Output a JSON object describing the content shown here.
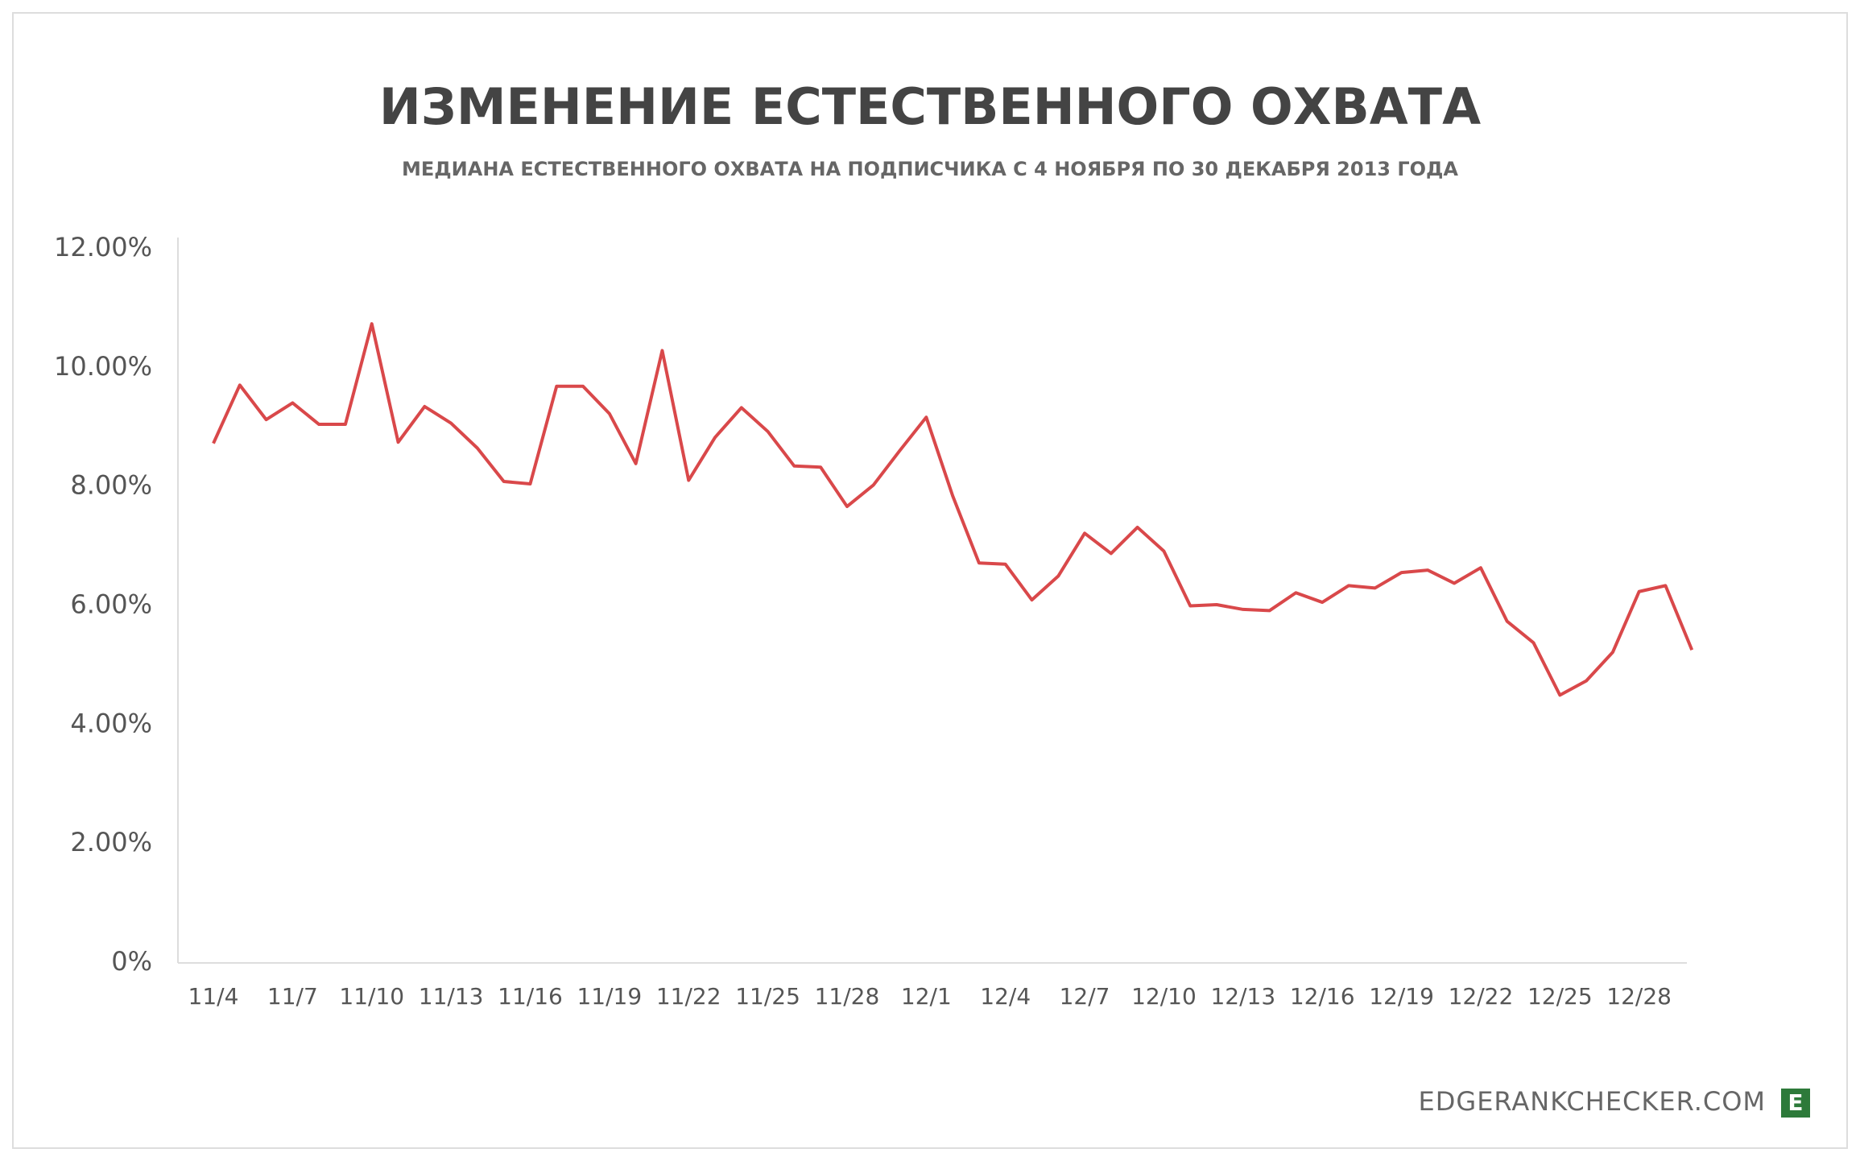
{
  "chart_data": {
    "type": "line",
    "title": "ИЗМЕНЕНИЕ ЕСТЕСТВЕННОГО ОХВАТА",
    "subtitle": "МЕДИАНА ЕСТЕСТВЕННОГО ОХВАТА НА ПОДПИСЧИКА С 4 НОЯБРЯ ПО 30 ДЕКАБРЯ 2013 ГОДА",
    "categories": [
      "11/4",
      null,
      null,
      "11/7",
      null,
      null,
      "11/10",
      null,
      null,
      "11/13",
      null,
      null,
      "11/16",
      null,
      null,
      "11/19",
      null,
      null,
      "11/22",
      null,
      null,
      "11/25",
      null,
      null,
      "11/28",
      null,
      null,
      "12/1",
      null,
      null,
      "12/4",
      null,
      null,
      "12/7",
      null,
      null,
      "12/10",
      null,
      null,
      "12/13",
      null,
      null,
      "12/16",
      null,
      null,
      "12/19",
      null,
      null,
      "12/22",
      null,
      null,
      "12/25",
      null,
      null,
      "12/28",
      null,
      null
    ],
    "values": [
      8.73,
      9.71,
      9.13,
      9.41,
      9.05,
      9.05,
      10.74,
      8.75,
      9.35,
      9.07,
      8.65,
      8.09,
      8.05,
      9.69,
      9.69,
      9.23,
      8.39,
      10.29,
      8.11,
      8.83,
      9.33,
      8.93,
      8.35,
      8.33,
      7.67,
      8.03,
      8.61,
      9.17,
      7.85,
      6.72,
      6.7,
      6.1,
      6.5,
      7.22,
      6.88,
      7.32,
      6.92,
      6.0,
      6.02,
      5.94,
      5.92,
      6.22,
      6.06,
      6.34,
      6.3,
      6.56,
      6.6,
      6.38,
      6.64,
      5.74,
      5.38,
      4.5,
      4.74,
      5.22,
      6.24,
      6.34,
      5.26
    ],
    "color": "#d9484a",
    "ylim": [
      0,
      12
    ],
    "yticks": [
      {
        "value": 0,
        "label": "0%"
      },
      {
        "value": 2,
        "label": "2.00%"
      },
      {
        "value": 4,
        "label": "4.00%"
      },
      {
        "value": 6,
        "label": "6.00%"
      },
      {
        "value": 8,
        "label": "8.00%"
      },
      {
        "value": 10,
        "label": "10.00%"
      },
      {
        "value": 12,
        "label": "12.00%"
      }
    ],
    "grid": false,
    "source": "EDGERANKCHECKER.COM",
    "logo": "E"
  }
}
